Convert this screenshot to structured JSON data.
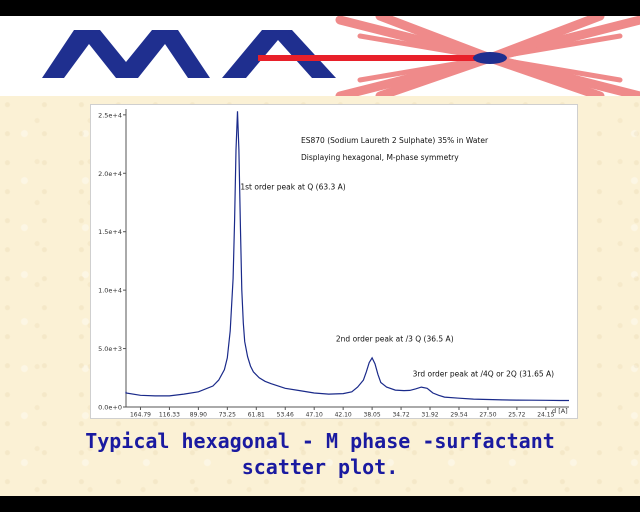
{
  "logo": {
    "text": "MAX",
    "colors": {
      "letters": "#1f2f8f",
      "beam": "#e8202a",
      "rays": "#ef8a8a",
      "center": "#1f2f8f"
    }
  },
  "caption": "Typical hexagonal - M phase -surfactant scatter plot.",
  "chart_data": {
    "type": "line",
    "title": "ES870 (Sodium Laureth 2 Sulphate) 35% in Water",
    "subtitle": "Displaying hexagonal, M-phase symmetry",
    "xlabel": "d [A]",
    "ylabel": "",
    "x_tick_labels": [
      "164.79",
      "116.33",
      "89.90",
      "73.25",
      "61.81",
      "53.46",
      "47.10",
      "42.10",
      "38.05",
      "34.72",
      "31.92",
      "29.54",
      "27.50",
      "25.72",
      "24.15"
    ],
    "y_tick_labels": [
      "0.0e+0",
      "5.0e+3",
      "1.0e+4",
      "1.5e+4",
      "2.0e+4",
      "2.5e+4"
    ],
    "ylim": [
      0,
      25500
    ],
    "x_index_range": [
      0,
      15.3
    ],
    "grid": false,
    "legend": "none",
    "series": [
      {
        "color": "#1a2a8a",
        "x": [
          -0.35,
          0,
          0.5,
          1,
          1.5,
          2,
          2.5,
          3,
          3.2,
          3.4,
          3.5,
          3.6,
          3.7,
          3.75,
          3.8,
          3.85,
          3.9,
          3.95,
          4.0,
          4.05,
          4.1,
          4.2,
          4.3,
          4.4,
          4.6,
          4.8,
          5,
          5.5,
          6,
          6.5,
          7,
          7.5,
          7.8,
          8.0,
          8.2,
          8.3,
          8.4,
          8.5,
          8.6,
          8.7,
          8.8,
          9,
          9.3,
          9.6,
          9.8,
          10,
          10.2,
          10.4,
          10.5,
          10.6,
          10.8,
          11,
          11.5,
          12,
          12.5,
          13,
          13.5,
          14,
          14.5,
          15,
          15.3
        ],
        "y": [
          1300,
          1200,
          1000,
          950,
          950,
          1100,
          1300,
          1800,
          2300,
          3200,
          4200,
          6500,
          11000,
          16000,
          22000,
          25300,
          22000,
          15500,
          10000,
          7200,
          5600,
          4300,
          3500,
          3000,
          2500,
          2200,
          2000,
          1600,
          1400,
          1200,
          1100,
          1150,
          1300,
          1700,
          2300,
          3000,
          3800,
          4200,
          3700,
          2800,
          2100,
          1700,
          1450,
          1400,
          1420,
          1550,
          1700,
          1600,
          1400,
          1200,
          1000,
          850,
          750,
          680,
          640,
          610,
          590,
          580,
          570,
          560,
          555
        ]
      }
    ],
    "annotations": [
      {
        "text": "1st order peak at Q (63.3 A)",
        "x": 3.95,
        "y": 18600
      },
      {
        "text": "2nd order peak at /3 Q (36.5 A)",
        "x": 7.25,
        "y": 5600
      },
      {
        "text": "3rd order peak at /4Q or 2Q (31.65 A)",
        "x": 9.9,
        "y": 2600
      }
    ]
  }
}
